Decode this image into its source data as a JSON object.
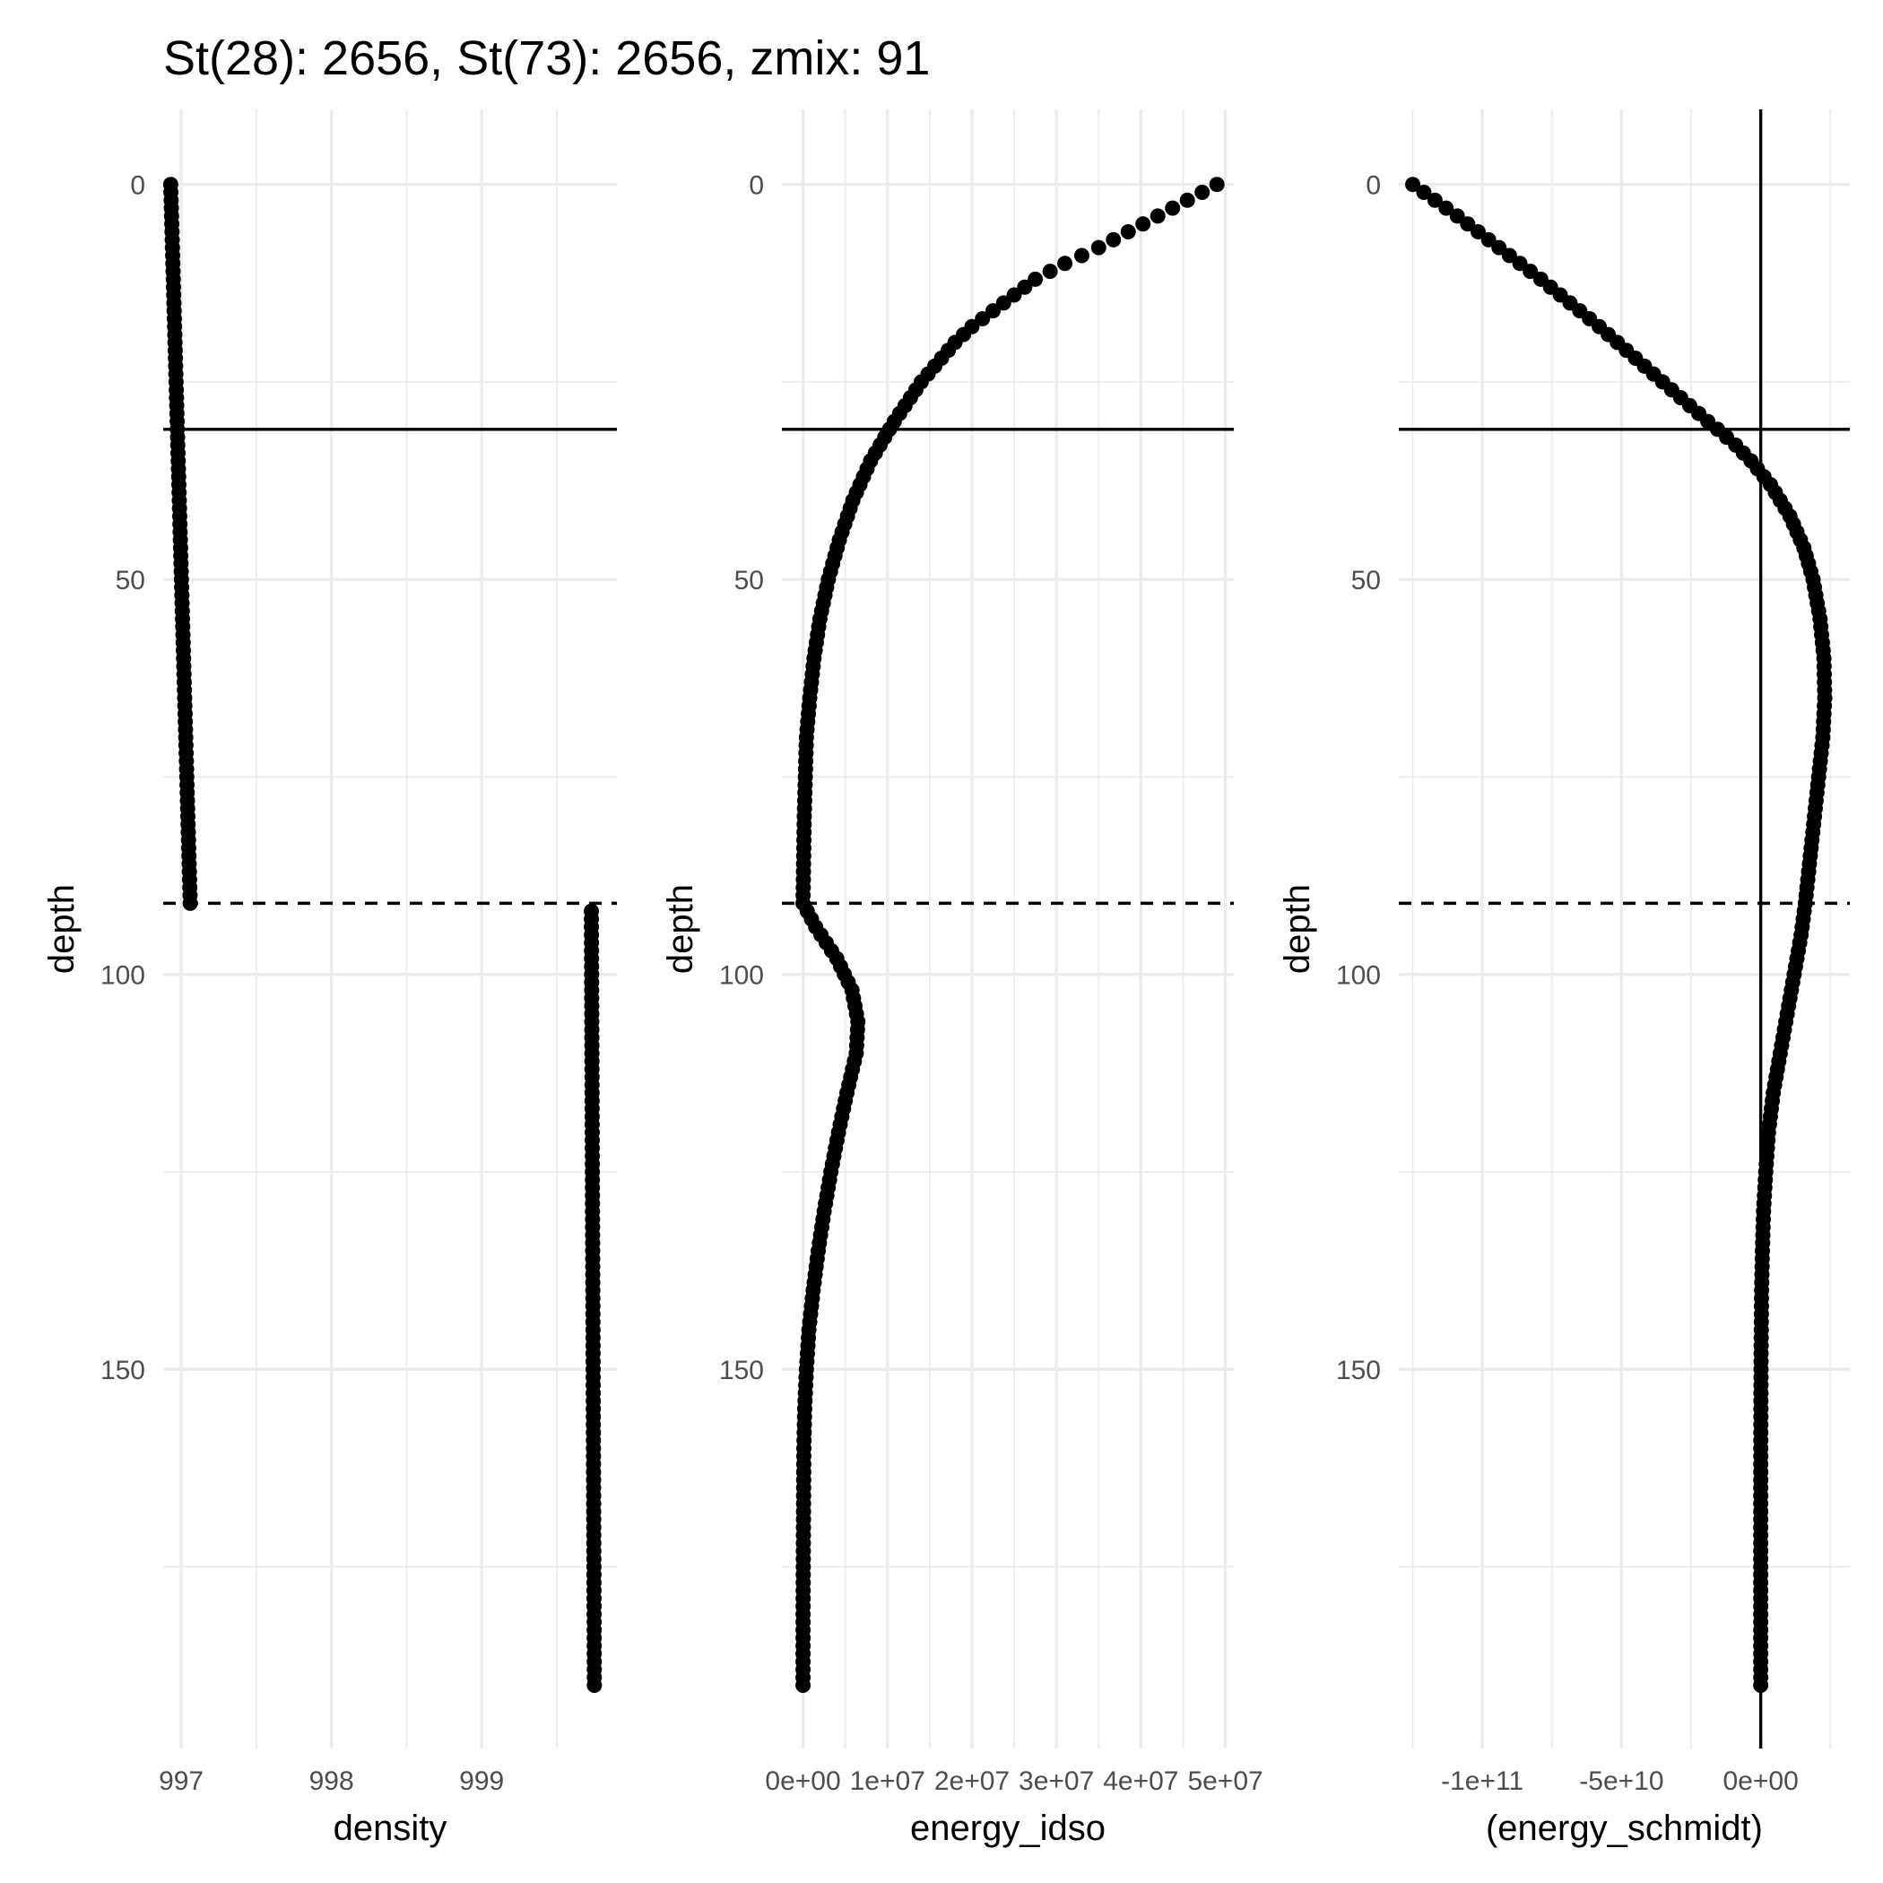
{
  "title": "St(28): 2656, St(73): 2656, zmix: 91",
  "colors": {
    "points": "#000000",
    "grid": "#ebebeb",
    "background": "#ffffff",
    "tick_text": "#4d4d4d"
  },
  "chart_data": [
    {
      "type": "scatter",
      "panel": "density",
      "xlabel": "density",
      "ylabel": "depth",
      "y_reversed": true,
      "xlim": [
        996.88,
        999.9
      ],
      "ylim": [
        -9.5,
        198
      ],
      "x_ticks": [
        997,
        998,
        999
      ],
      "x_tick_labels": [
        "997",
        "998",
        "999"
      ],
      "y_ticks": [
        0,
        50,
        100,
        150
      ],
      "y_tick_labels": [
        "0",
        "50",
        "100",
        "150"
      ],
      "grid": true,
      "hlines": [
        {
          "y": 31,
          "style": "solid"
        },
        {
          "y": 91,
          "style": "dashed"
        }
      ],
      "segments": [
        {
          "depth_from": 0,
          "depth_to": 91,
          "x_from": 996.93,
          "x_to": 997.06,
          "exponent": 1.0
        },
        {
          "depth_from": 92,
          "depth_to": 190,
          "x_from": 999.73,
          "x_to": 999.75,
          "exponent": 1.0
        }
      ]
    },
    {
      "type": "scatter",
      "panel": "energy_idso",
      "xlabel": "energy_idso",
      "ylabel": "depth",
      "y_reversed": true,
      "xlim": [
        -2500000,
        51000000
      ],
      "ylim": [
        -9.5,
        198
      ],
      "x_ticks": [
        0,
        10000000,
        20000000,
        30000000,
        40000000,
        50000000
      ],
      "x_tick_labels": [
        "0e+00",
        "1e+07",
        "2e+07",
        "3e+07",
        "4e+07",
        "5e+07"
      ],
      "y_ticks": [
        0,
        50,
        100,
        150
      ],
      "y_tick_labels": [
        "0",
        "50",
        "100",
        "150"
      ],
      "grid": true,
      "hlines": [
        {
          "y": 31,
          "style": "solid"
        },
        {
          "y": 91,
          "style": "dashed"
        }
      ],
      "profile": [
        [
          0,
          49000000
        ],
        [
          2,
          45500000
        ],
        [
          4,
          42000000
        ],
        [
          6,
          38500000
        ],
        [
          8,
          35000000
        ],
        [
          10,
          31000000
        ],
        [
          12,
          27500000
        ],
        [
          14,
          25000000
        ],
        [
          16,
          22500000
        ],
        [
          18,
          20000000
        ],
        [
          20,
          18000000
        ],
        [
          25,
          14000000
        ],
        [
          30,
          10800000
        ],
        [
          35,
          8000000
        ],
        [
          40,
          5900000
        ],
        [
          45,
          4300000
        ],
        [
          50,
          3000000
        ],
        [
          55,
          2000000
        ],
        [
          60,
          1300000
        ],
        [
          65,
          800000
        ],
        [
          70,
          400000
        ],
        [
          80,
          150000
        ],
        [
          91,
          0
        ],
        [
          94,
          1500000
        ],
        [
          98,
          4000000
        ],
        [
          102,
          5800000
        ],
        [
          106,
          6500000
        ],
        [
          110,
          6300000
        ],
        [
          115,
          5200000
        ],
        [
          120,
          4200000
        ],
        [
          125,
          3300000
        ],
        [
          130,
          2500000
        ],
        [
          135,
          1800000
        ],
        [
          140,
          1200000
        ],
        [
          145,
          700000
        ],
        [
          150,
          400000
        ],
        [
          155,
          200000
        ],
        [
          160,
          100000
        ],
        [
          170,
          50000
        ],
        [
          180,
          10000
        ],
        [
          190,
          0
        ]
      ]
    },
    {
      "type": "scatter",
      "panel": "energy_schmidt",
      "xlabel": "(energy_schmidt)",
      "ylabel": "depth",
      "y_reversed": true,
      "xlim": [
        -130000000000,
        32000000000
      ],
      "ylim": [
        -9.5,
        198
      ],
      "x_ticks": [
        -100000000000,
        -50000000000,
        0
      ],
      "x_tick_labels": [
        "-1e+11",
        "-5e+10",
        "0e+00"
      ],
      "y_ticks": [
        0,
        50,
        100,
        150
      ],
      "y_tick_labels": [
        "0",
        "50",
        "100",
        "150"
      ],
      "grid": true,
      "vline_x": 0,
      "hlines": [
        {
          "y": 31,
          "style": "solid"
        },
        {
          "y": 91,
          "style": "dashed"
        }
      ],
      "profile": [
        [
          0,
          -125000000000
        ],
        [
          2,
          -117000000000
        ],
        [
          4,
          -109000000000
        ],
        [
          6,
          -101500000000
        ],
        [
          8,
          -94000000000
        ],
        [
          10,
          -86500000000
        ],
        [
          12,
          -79000000000
        ],
        [
          14,
          -72000000000
        ],
        [
          16,
          -65000000000
        ],
        [
          18,
          -58000000000
        ],
        [
          20,
          -51500000000
        ],
        [
          22,
          -45000000000
        ],
        [
          24,
          -38500000000
        ],
        [
          26,
          -32000000000
        ],
        [
          28,
          -25500000000
        ],
        [
          30,
          -19000000000
        ],
        [
          31,
          -15500000000
        ],
        [
          33,
          -9000000000
        ],
        [
          35,
          -3500000000
        ],
        [
          38,
          3500000000
        ],
        [
          42,
          10500000000
        ],
        [
          46,
          15500000000
        ],
        [
          50,
          18800000000
        ],
        [
          55,
          21300000000
        ],
        [
          60,
          22700000000
        ],
        [
          65,
          23000000000
        ],
        [
          70,
          22300000000
        ],
        [
          75,
          20800000000
        ],
        [
          80,
          19300000000
        ],
        [
          85,
          17800000000
        ],
        [
          91,
          16000000000
        ],
        [
          95,
          14500000000
        ],
        [
          100,
          12000000000
        ],
        [
          105,
          9500000000
        ],
        [
          110,
          7000000000
        ],
        [
          115,
          4500000000
        ],
        [
          120,
          2800000000
        ],
        [
          125,
          1800000000
        ],
        [
          130,
          1000000000
        ],
        [
          135,
          600000000
        ],
        [
          140,
          300000000
        ],
        [
          150,
          100000000
        ],
        [
          160,
          20000000
        ],
        [
          170,
          0
        ],
        [
          190,
          0
        ]
      ]
    }
  ]
}
